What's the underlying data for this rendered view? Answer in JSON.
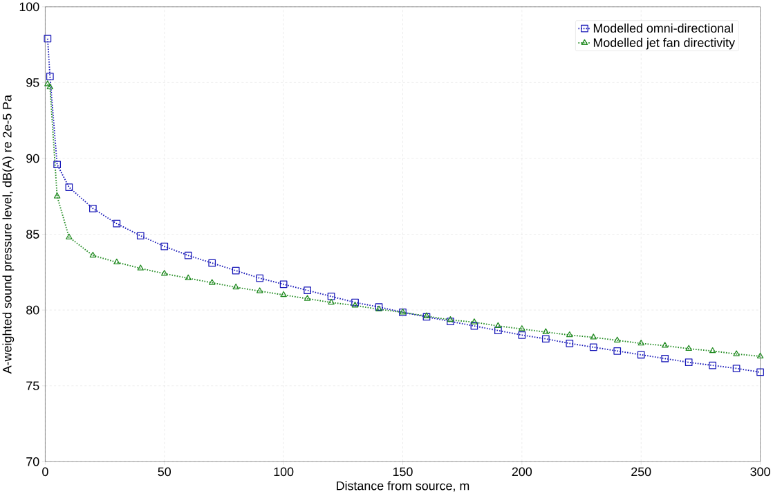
{
  "chart_data": {
    "type": "line",
    "xlabel": "Distance from source, m",
    "ylabel": "A-weighted sound pressure level, dB(A) re 2e-5 Pa",
    "x": [
      1,
      2,
      5,
      10,
      20,
      30,
      40,
      50,
      60,
      70,
      80,
      90,
      100,
      110,
      120,
      130,
      140,
      150,
      160,
      170,
      180,
      190,
      200,
      210,
      220,
      230,
      240,
      250,
      260,
      270,
      280,
      290,
      300
    ],
    "series": [
      {
        "name": "Modelled omni-directional",
        "color": "#1a1ab8",
        "marker": "square",
        "values": [
          97.9,
          95.4,
          89.6,
          88.1,
          86.7,
          85.7,
          84.9,
          84.2,
          83.6,
          83.1,
          82.6,
          82.1,
          81.7,
          81.3,
          80.9,
          80.5,
          80.2,
          79.85,
          79.55,
          79.25,
          78.95,
          78.65,
          78.35,
          78.1,
          77.8,
          77.55,
          77.3,
          77.05,
          76.8,
          76.55,
          76.35,
          76.15,
          75.9
        ]
      },
      {
        "name": "Modelled jet fan directivity",
        "color": "#228b22",
        "marker": "triangle",
        "values": [
          94.9,
          94.7,
          87.5,
          84.8,
          83.6,
          83.15,
          82.75,
          82.4,
          82.1,
          81.8,
          81.5,
          81.25,
          81.0,
          80.75,
          80.5,
          80.3,
          80.05,
          79.85,
          79.6,
          79.35,
          79.2,
          78.95,
          78.75,
          78.55,
          78.35,
          78.2,
          78.0,
          77.8,
          77.65,
          77.45,
          77.3,
          77.1,
          76.95
        ]
      }
    ],
    "xlim": [
      0,
      300
    ],
    "ylim": [
      70,
      100
    ],
    "xticks": [
      0,
      50,
      100,
      150,
      200,
      250,
      300
    ],
    "yticks": [
      70,
      75,
      80,
      85,
      90,
      95,
      100
    ],
    "grid": true,
    "legend": "top right",
    "line_style": "dotted"
  }
}
